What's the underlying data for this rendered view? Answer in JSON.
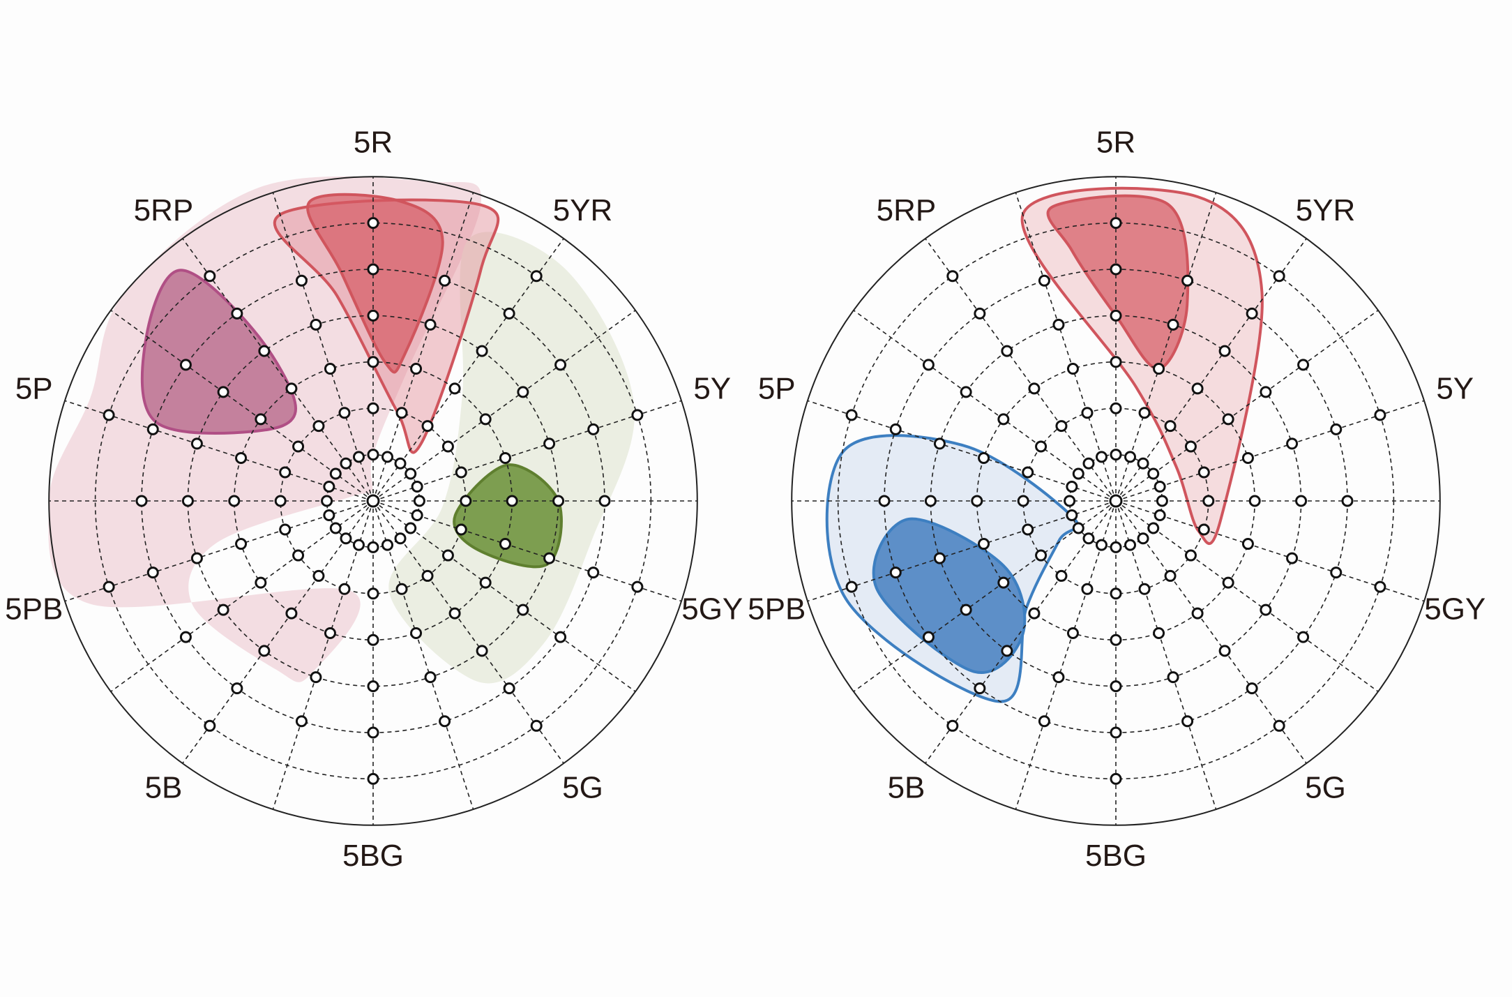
{
  "panels": [
    {
      "hue_labels": [
        "5R",
        "5YR",
        "5Y",
        "5GY",
        "5G",
        "5BG",
        "5B",
        "5PB",
        "5P",
        "5RP"
      ]
    },
    {
      "hue_labels": [
        "5R",
        "5YR",
        "5Y",
        "5GY",
        "5G",
        "5BG",
        "5B",
        "5PB",
        "5P",
        "5RP"
      ]
    }
  ]
}
